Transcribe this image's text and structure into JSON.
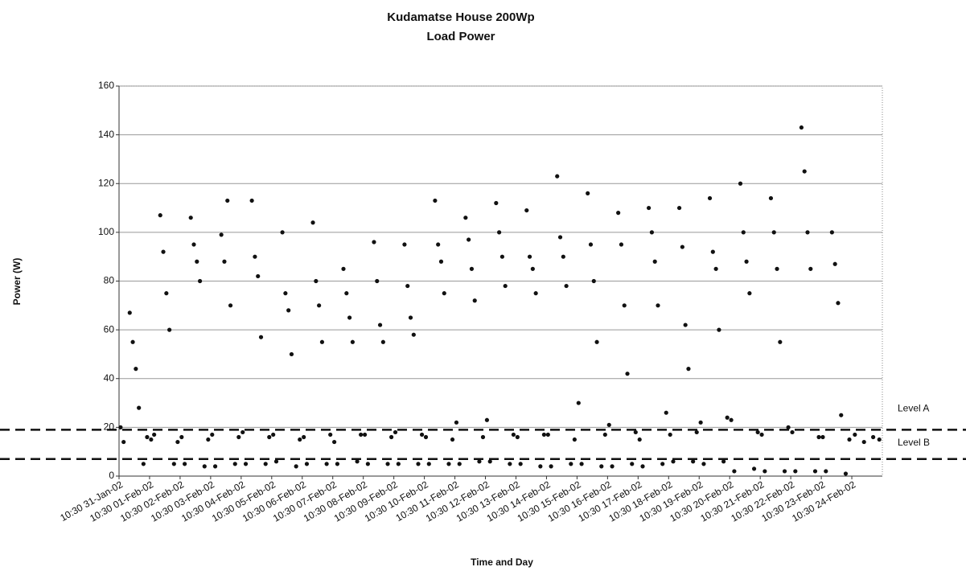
{
  "chart_data": {
    "type": "scatter",
    "title": "Kudamatse House 200Wp",
    "subtitle": "Load Power",
    "x_label": "Time and Day",
    "y_label": "Power (W)",
    "ylim": [
      0,
      160
    ],
    "yticks": [
      0,
      20,
      40,
      60,
      80,
      100,
      120,
      140,
      160
    ],
    "grid": true,
    "xlim": [
      0,
      25
    ],
    "xticks": [
      {
        "value": 0,
        "label": "10:30 31-Jan-02"
      },
      {
        "value": 1,
        "label": "10:30 01-Feb-02"
      },
      {
        "value": 2,
        "label": "10:30 02-Feb-02"
      },
      {
        "value": 3,
        "label": "10:30 03-Feb-02"
      },
      {
        "value": 4,
        "label": "10:30 04-Feb-02"
      },
      {
        "value": 5,
        "label": "10:30 05-Feb-02"
      },
      {
        "value": 6,
        "label": "10:30 06-Feb-02"
      },
      {
        "value": 7,
        "label": "10:30 07-Feb-02"
      },
      {
        "value": 8,
        "label": "10:30 08-Feb-02"
      },
      {
        "value": 9,
        "label": "10:30 09-Feb-02"
      },
      {
        "value": 10,
        "label": "10:30 10-Feb-02"
      },
      {
        "value": 11,
        "label": "10:30 11-Feb-02"
      },
      {
        "value": 12,
        "label": "10:30 12-Feb-02"
      },
      {
        "value": 13,
        "label": "10:30 13-Feb-02"
      },
      {
        "value": 14,
        "label": "10:30 14-Feb-02"
      },
      {
        "value": 15,
        "label": "10:30 15-Feb-02"
      },
      {
        "value": 16,
        "label": "10:30 16-Feb-02"
      },
      {
        "value": 17,
        "label": "10:30 17-Feb-02"
      },
      {
        "value": 18,
        "label": "10:30 18-Feb-02"
      },
      {
        "value": 19,
        "label": "10:30 19-Feb-02"
      },
      {
        "value": 20,
        "label": "10:30 20-Feb-02"
      },
      {
        "value": 21,
        "label": "10:30 21-Feb-02"
      },
      {
        "value": 22,
        "label": "10:30 22-Feb-02"
      },
      {
        "value": 23,
        "label": "10:30 23-Feb-02"
      },
      {
        "value": 24,
        "label": "10:30 24-Feb-02"
      }
    ],
    "reference_lines": [
      {
        "label": "Level A",
        "value": 19
      },
      {
        "label": "Level B",
        "value": 7
      }
    ],
    "series": [
      {
        "color": "#111111",
        "x": [
          0.05,
          0.15,
          0.35,
          0.45,
          0.55,
          0.65,
          0.8,
          0.92,
          1.05,
          1.15,
          1.35,
          1.45,
          1.55,
          1.65,
          1.8,
          1.92,
          2.05,
          2.15,
          2.35,
          2.45,
          2.55,
          2.65,
          2.8,
          2.92,
          3.05,
          3.15,
          3.35,
          3.45,
          3.55,
          3.65,
          3.8,
          3.92,
          4.05,
          4.15,
          4.35,
          4.45,
          4.55,
          4.65,
          4.8,
          4.92,
          5.05,
          5.15,
          5.35,
          5.45,
          5.55,
          5.65,
          5.8,
          5.92,
          6.05,
          6.15,
          6.35,
          6.45,
          6.55,
          6.65,
          6.8,
          6.92,
          7.05,
          7.15,
          7.35,
          7.45,
          7.55,
          7.65,
          7.8,
          7.92,
          8.05,
          8.15,
          8.35,
          8.45,
          8.55,
          8.65,
          8.8,
          8.92,
          9.05,
          9.15,
          9.35,
          9.45,
          9.55,
          9.65,
          9.8,
          9.92,
          10.05,
          10.15,
          10.35,
          10.45,
          10.55,
          10.65,
          10.8,
          10.92,
          11.05,
          11.15,
          11.35,
          11.45,
          11.55,
          11.65,
          11.8,
          11.92,
          12.05,
          12.15,
          12.35,
          12.45,
          12.55,
          12.65,
          12.8,
          12.92,
          13.05,
          13.15,
          13.35,
          13.45,
          13.55,
          13.65,
          13.8,
          13.92,
          14.05,
          14.15,
          14.35,
          14.45,
          14.55,
          14.65,
          14.8,
          14.92,
          15.05,
          15.15,
          15.35,
          15.45,
          15.55,
          15.65,
          15.8,
          15.92,
          16.05,
          16.15,
          16.35,
          16.45,
          16.55,
          16.65,
          16.8,
          16.92,
          17.05,
          17.15,
          17.35,
          17.45,
          17.55,
          17.65,
          17.8,
          17.92,
          18.05,
          18.15,
          18.35,
          18.45,
          18.55,
          18.65,
          18.8,
          18.92,
          19.05,
          19.15,
          19.35,
          19.45,
          19.55,
          19.65,
          19.8,
          19.92,
          20.05,
          20.15,
          20.35,
          20.45,
          20.55,
          20.65,
          20.8,
          20.92,
          21.05,
          21.15,
          21.35,
          21.45,
          21.55,
          21.65,
          21.8,
          21.92,
          22.05,
          22.15,
          22.35,
          22.45,
          22.55,
          22.65,
          22.8,
          22.92,
          23.05,
          23.15,
          23.35,
          23.45,
          23.55,
          23.65,
          23.8,
          23.92,
          24.1,
          24.4,
          24.7,
          24.9
        ],
        "values": [
          20,
          14,
          67,
          55,
          44,
          28,
          5,
          16,
          15,
          17,
          107,
          92,
          75,
          60,
          5,
          14,
          16,
          5,
          106,
          95,
          88,
          80,
          4,
          15,
          17,
          4,
          99,
          88,
          113,
          70,
          5,
          16,
          18,
          5,
          113,
          90,
          82,
          57,
          5,
          16,
          17,
          6,
          100,
          75,
          68,
          50,
          4,
          15,
          16,
          5,
          104,
          80,
          70,
          55,
          5,
          17,
          14,
          5,
          85,
          75,
          65,
          55,
          6,
          17,
          17,
          5,
          96,
          80,
          62,
          55,
          5,
          16,
          18,
          5,
          95,
          78,
          65,
          58,
          5,
          17,
          16,
          5,
          113,
          95,
          88,
          75,
          5,
          15,
          22,
          5,
          106,
          97,
          85,
          72,
          6,
          16,
          23,
          6,
          112,
          100,
          90,
          78,
          5,
          17,
          16,
          5,
          109,
          90,
          85,
          75,
          4,
          17,
          17,
          4,
          123,
          98,
          90,
          78,
          5,
          15,
          30,
          5,
          116,
          95,
          80,
          55,
          4,
          17,
          21,
          4,
          108,
          95,
          70,
          42,
          5,
          18,
          15,
          4,
          110,
          100,
          88,
          70,
          5,
          26,
          17,
          6,
          110,
          94,
          62,
          44,
          6,
          18,
          22,
          5,
          114,
          92,
          85,
          60,
          6,
          24,
          23,
          2,
          120,
          100,
          88,
          75,
          3,
          18,
          17,
          2,
          114,
          100,
          85,
          55,
          2,
          20,
          18,
          2,
          143,
          125,
          100,
          85,
          2,
          16,
          16,
          2,
          100,
          87,
          71,
          25,
          1,
          15,
          17,
          14,
          16,
          15
        ]
      }
    ]
  }
}
